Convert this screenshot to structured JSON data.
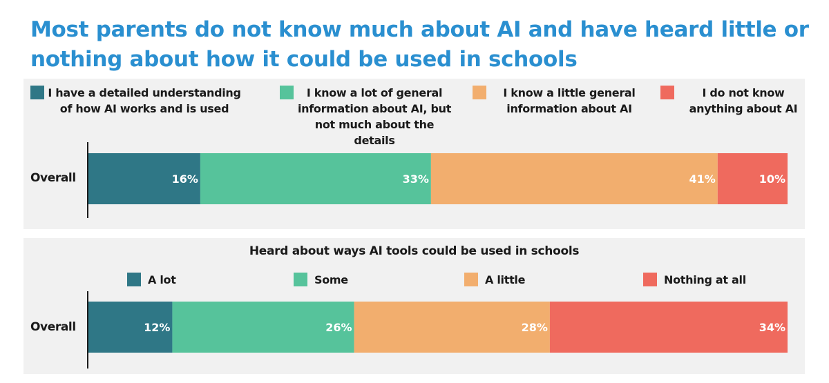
{
  "title": "Most parents do not know much about AI and have heard little or nothing about how it could be used in schools",
  "colors": {
    "teal": "#2f7786",
    "green": "#56c39b",
    "orange": "#f2ae6e",
    "red": "#ef6a5e",
    "title": "#2a8fd0",
    "panel": "#f1f1f1"
  },
  "chart_data": [
    {
      "type": "bar",
      "orientation": "horizontal-stacked",
      "title": "",
      "categories": [
        "Overall"
      ],
      "series": [
        {
          "name": "I have a detailed understanding of how AI works and is used",
          "values": [
            16
          ],
          "label": "16%",
          "color": "#2f7786"
        },
        {
          "name": "I know a lot of general information about AI, but not much about the details",
          "values": [
            33
          ],
          "label": "33%",
          "color": "#56c39b"
        },
        {
          "name": "I know a little general information about AI",
          "values": [
            41
          ],
          "label": "41%",
          "color": "#f2ae6e"
        },
        {
          "name": "I do not know anything about AI",
          "values": [
            10
          ],
          "label": "10%",
          "color": "#ef6a5e"
        }
      ],
      "xlim": [
        0,
        100
      ],
      "legend": "top",
      "grid": false
    },
    {
      "type": "bar",
      "orientation": "horizontal-stacked",
      "title": "Heard about ways AI tools could be used in schools",
      "categories": [
        "Overall"
      ],
      "series": [
        {
          "name": "A lot",
          "values": [
            12
          ],
          "label": "12%",
          "color": "#2f7786"
        },
        {
          "name": "Some",
          "values": [
            26
          ],
          "label": "26%",
          "color": "#56c39b"
        },
        {
          "name": "A little",
          "values": [
            28
          ],
          "label": "28%",
          "color": "#f2ae6e"
        },
        {
          "name": "Nothing at all",
          "values": [
            34
          ],
          "label": "34%",
          "color": "#ef6a5e"
        }
      ],
      "xlim": [
        0,
        100
      ],
      "legend": "top",
      "grid": false
    }
  ]
}
